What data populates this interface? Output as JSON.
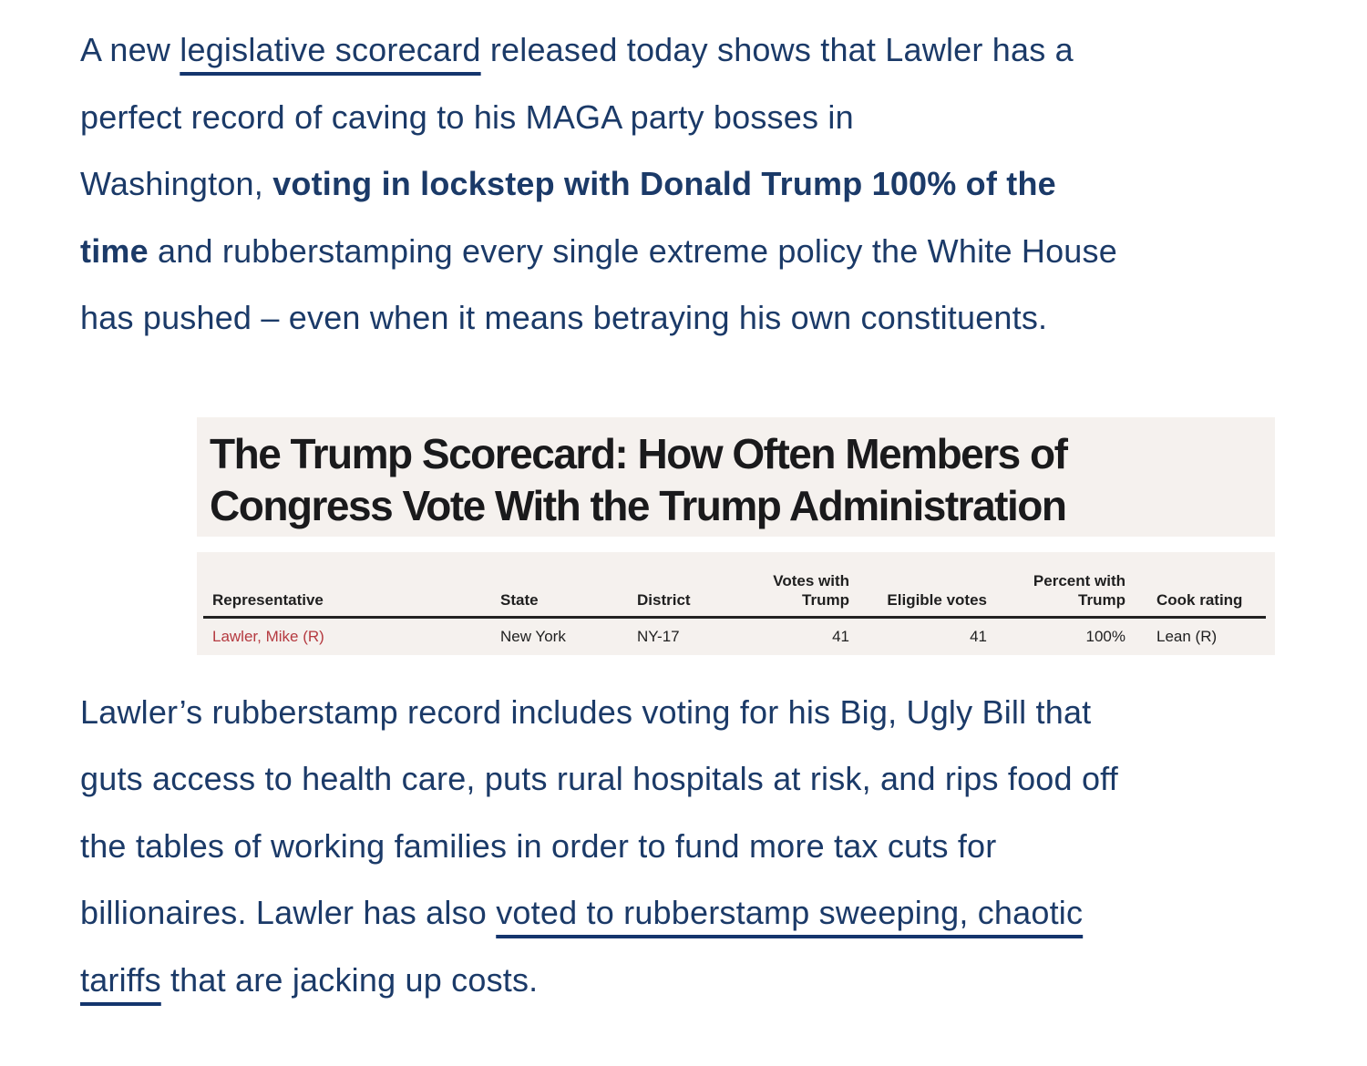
{
  "theme": {
    "page_bg": "#ffffff",
    "text": "#1b3a68",
    "link_underline": "#14356d",
    "name_red": "#b53a40",
    "headline_ink": "#1a1a1c",
    "embed_bg": "#f5f1ee",
    "table_ink": "#1f1f1f",
    "rule": "#222222"
  },
  "paragraph1": {
    "runs": [
      {
        "text": "A new ",
        "style": "plain"
      },
      {
        "text": "legislative scorecard",
        "style": "link"
      },
      {
        "text": " released today shows that Lawler has a",
        "style": "plain"
      },
      {
        "br": true
      },
      {
        "text": "perfect record of caving to his MAGA party bosses in",
        "style": "plain"
      },
      {
        "br": true
      },
      {
        "text": "Washington, ",
        "style": "plain"
      },
      {
        "text": "voting in lockstep with Donald Trump 100% of the",
        "style": "bold"
      },
      {
        "br": true
      },
      {
        "text": "time",
        "style": "bold"
      },
      {
        "text": " and rubberstamping every single extreme policy the White House",
        "style": "plain"
      },
      {
        "br": true
      },
      {
        "text": "has pushed – even when it means betraying his own constituents.",
        "style": "plain"
      }
    ]
  },
  "scorecard": {
    "title_lines": [
      "The Trump Scorecard: How Often Members of",
      "Congress Vote With the Trump Administration"
    ],
    "table": {
      "headers": [
        {
          "label": "Representative"
        },
        {
          "label": "State"
        },
        {
          "label": "District"
        },
        {
          "label": "Votes with\nTrump"
        },
        {
          "label": "Eligible votes"
        },
        {
          "label": "Percent with\nTrump"
        },
        {
          "label": "Cook rating"
        }
      ],
      "row": {
        "representative": "Lawler, Mike (R)",
        "state": "New York",
        "district": "NY-17",
        "votes_with_trump": "41",
        "eligible_votes": "41",
        "percent_with_trump": "100%",
        "cook_rating": "Lean (R)"
      }
    }
  },
  "paragraph2": {
    "runs": [
      {
        "text": "Lawler’s rubberstamp record includes voting for his Big, Ugly Bill that",
        "style": "plain"
      },
      {
        "br": true
      },
      {
        "text": "guts access to health care, puts rural hospitals at risk, and rips food off",
        "style": "plain"
      },
      {
        "br": true
      },
      {
        "text": "the tables of working families in order to fund more tax cuts for",
        "style": "plain"
      },
      {
        "br": true
      },
      {
        "text": "billionaires. Lawler has also ",
        "style": "plain"
      },
      {
        "text": "voted to rubberstamp sweeping, chaotic",
        "style": "link"
      },
      {
        "br": true
      },
      {
        "text": "tariffs",
        "style": "link"
      },
      {
        "text": " that are jacking up costs.",
        "style": "plain"
      }
    ]
  }
}
